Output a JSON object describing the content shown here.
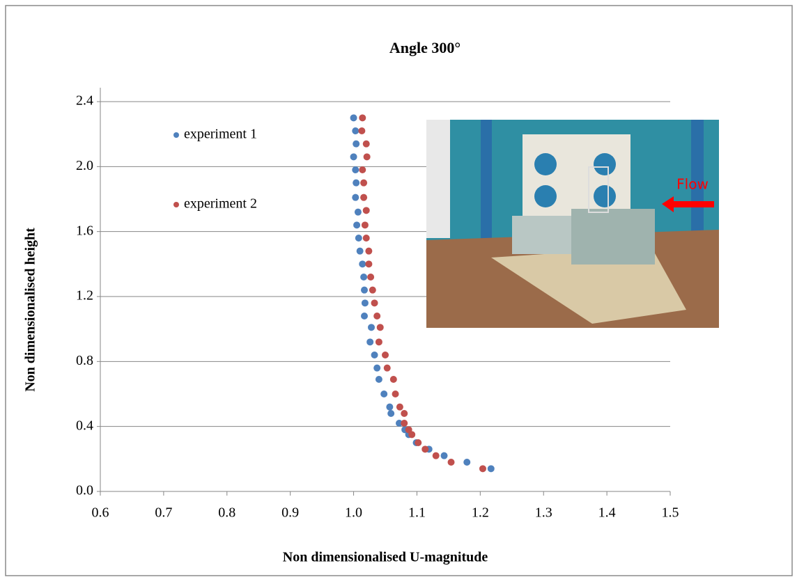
{
  "chart_data": {
    "type": "scatter",
    "title": "Angle 300°",
    "x_label": "Non  dimensionalised  U-magnitude",
    "y_label": "Non  dimensionalised  height",
    "xlim": [
      0.6,
      1.5
    ],
    "xticks": [
      0.6,
      0.7,
      0.8,
      0.9,
      {
        "value": 1.0,
        "label": "1.0"
      },
      1.1,
      1.2,
      1.3,
      1.4,
      1.5
    ],
    "ylim": [
      0,
      2.4
    ],
    "yticks": [
      {
        "value": 0,
        "label": "0.0"
      },
      0.4,
      0.8,
      1.2,
      1.6,
      {
        "value": 2.0,
        "label": "2.0"
      },
      2.4
    ],
    "grid": true,
    "legend": "upper left",
    "annotations": [
      "Flow"
    ],
    "series": [
      {
        "name": "experiment 1",
        "color": "#4f81bd",
        "x": [
          1.0,
          1.003,
          1.004,
          1.0,
          1.003,
          1.004,
          1.003,
          1.007,
          1.005,
          1.008,
          1.01,
          1.014,
          1.016,
          1.017,
          1.018,
          1.017,
          1.028,
          1.026,
          1.033,
          1.037,
          1.04,
          1.048,
          1.057,
          1.059,
          1.072,
          1.081,
          1.087,
          1.099,
          1.119,
          1.143,
          1.179,
          1.217
        ],
        "values": [
          2.3,
          2.22,
          2.14,
          2.06,
          1.98,
          1.9,
          1.81,
          1.72,
          1.64,
          1.56,
          1.48,
          1.4,
          1.32,
          1.24,
          1.16,
          1.08,
          1.01,
          0.92,
          0.84,
          0.76,
          0.69,
          0.6,
          0.52,
          0.48,
          0.42,
          0.38,
          0.35,
          0.3,
          0.26,
          0.22,
          0.18,
          0.14
        ]
      },
      {
        "name": "experiment 2",
        "color": "#c0504d",
        "x": [
          1.014,
          1.013,
          1.02,
          1.021,
          1.014,
          1.016,
          1.016,
          1.02,
          1.018,
          1.02,
          1.024,
          1.024,
          1.027,
          1.03,
          1.033,
          1.037,
          1.042,
          1.04,
          1.05,
          1.053,
          1.063,
          1.066,
          1.073,
          1.08,
          1.08,
          1.087,
          1.092,
          1.102,
          1.113,
          1.13,
          1.154,
          1.204
        ],
        "values": [
          2.3,
          2.22,
          2.14,
          2.06,
          1.98,
          1.9,
          1.81,
          1.73,
          1.64,
          1.56,
          1.48,
          1.4,
          1.32,
          1.24,
          1.16,
          1.08,
          1.01,
          0.92,
          0.84,
          0.76,
          0.69,
          0.6,
          0.52,
          0.48,
          0.42,
          0.38,
          0.35,
          0.3,
          0.26,
          0.22,
          0.18,
          0.14
        ]
      }
    ]
  }
}
